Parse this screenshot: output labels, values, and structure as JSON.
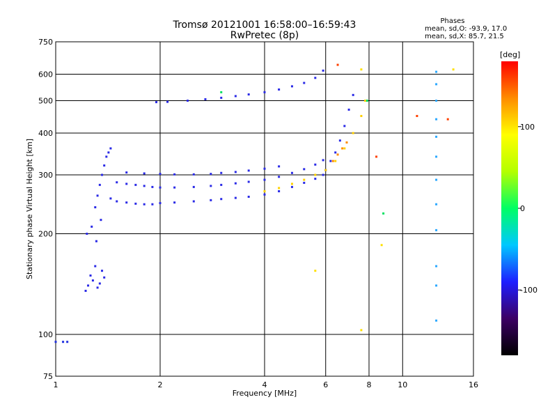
{
  "chart_data": {
    "type": "scatter",
    "title": "Tromsø 20121001 16:58:00–16:59:43",
    "subtitle": "RwPretec (8p)",
    "xlabel": "Frequency [MHz]",
    "ylabel": "Stationary phase Virtual Height [km]",
    "x_scale": "log",
    "y_scale": "log",
    "xlim": [
      1,
      16
    ],
    "ylim": [
      75,
      750
    ],
    "x_ticks": [
      1,
      2,
      4,
      6,
      8,
      10,
      16
    ],
    "x_tick_labels": [
      "1",
      "2",
      "4",
      "6",
      "8",
      "10",
      "16"
    ],
    "y_ticks": [
      75,
      100,
      200,
      300,
      400,
      500,
      600,
      750
    ],
    "y_tick_labels": [
      "75",
      "100",
      "200",
      "300",
      "400",
      "500",
      "600",
      "750"
    ],
    "grid": true,
    "grid_x": [
      2,
      4,
      6,
      8,
      10
    ],
    "grid_y": [
      100,
      200,
      300,
      400,
      500,
      600
    ],
    "phase_info": {
      "heading": "Phases",
      "line_o": "mean, sd,O: -93.9, 17.0",
      "line_x": "mean, sd,X: 85.7, 21.5"
    },
    "colorbar": {
      "unit": "[deg]",
      "range": [
        -180,
        180
      ],
      "ticks": [
        100,
        0,
        -100
      ],
      "tick_labels": [
        "100",
        "0",
        "-100"
      ],
      "colors": [
        "#000000",
        "#3c0064",
        "#1e1eff",
        "#00c8ff",
        "#00ff64",
        "#b4ff00",
        "#ffff00",
        "#ff8c00",
        "#ff0000"
      ]
    },
    "series": [
      {
        "color": "#2030e0",
        "x": [
          1.0,
          1.05,
          1.08
        ],
        "y": [
          95,
          95,
          95
        ]
      },
      {
        "color": "#2a2ae6",
        "x": [
          1.22,
          1.24,
          1.26,
          1.28,
          1.3,
          1.32,
          1.34,
          1.36,
          1.38,
          1.23,
          1.27,
          1.31,
          1.35
        ],
        "y": [
          135,
          140,
          150,
          145,
          160,
          138,
          142,
          155,
          148,
          200,
          210,
          190,
          220
        ]
      },
      {
        "color": "#2a2ae6",
        "x": [
          1.3,
          1.32,
          1.34,
          1.36,
          1.38,
          1.4,
          1.42,
          1.44
        ],
        "y": [
          240,
          260,
          280,
          300,
          320,
          340,
          350,
          360
        ]
      },
      {
        "color": "#2a2ae6",
        "x": [
          1.44,
          1.5,
          1.6,
          1.7,
          1.8,
          1.9,
          2.0,
          2.2,
          2.5,
          2.8,
          3.0,
          3.3,
          3.6,
          4.0,
          4.4,
          4.8,
          5.2,
          5.6,
          5.9
        ],
        "y": [
          255,
          250,
          248,
          246,
          245,
          245,
          247,
          248,
          250,
          252,
          254,
          256,
          258,
          262,
          268,
          276,
          284,
          292,
          300
        ]
      },
      {
        "color": "#2a2ae6",
        "x": [
          1.5,
          1.6,
          1.7,
          1.8,
          1.9,
          2.0,
          2.2,
          2.5,
          2.8,
          3.0,
          3.3,
          3.6,
          4.0,
          4.4,
          4.8,
          5.2,
          5.6,
          5.9
        ],
        "y": [
          285,
          282,
          280,
          278,
          276,
          275,
          275,
          276,
          278,
          280,
          283,
          286,
          290,
          296,
          304,
          312,
          322,
          332
        ]
      },
      {
        "color": "#2a2ae6",
        "x": [
          1.6,
          1.8,
          2.0,
          2.2,
          2.5,
          2.8,
          3.0,
          3.3,
          3.6,
          4.0,
          4.4
        ],
        "y": [
          305,
          303,
          302,
          301,
          301,
          302,
          304,
          306,
          309,
          313,
          318
        ]
      },
      {
        "color": "#2a2ae6",
        "x": [
          1.95,
          2.1,
          2.4,
          2.7,
          3.0,
          3.3,
          3.6,
          4.0,
          4.4,
          4.8,
          5.2,
          5.6,
          5.9
        ],
        "y": [
          495,
          496,
          500,
          505,
          510,
          516,
          522,
          530,
          540,
          552,
          565,
          585,
          615
        ]
      },
      {
        "color": "#2a2ae6",
        "x": [
          6.0,
          6.2,
          6.4,
          6.6,
          6.8,
          7.0,
          7.2
        ],
        "y": [
          310,
          330,
          350,
          380,
          420,
          470,
          520
        ]
      },
      {
        "color": "#ffd000",
        "x": [
          4.0,
          4.4,
          4.8,
          5.2,
          5.6,
          6.0,
          6.4,
          6.8,
          7.2,
          7.6,
          7.8
        ],
        "y": [
          268,
          274,
          282,
          290,
          300,
          310,
          330,
          360,
          400,
          450,
          500
        ]
      },
      {
        "color": "#ff8c00",
        "x": [
          6.3,
          6.5,
          6.7,
          6.9
        ],
        "y": [
          330,
          345,
          360,
          375
        ]
      },
      {
        "color": "#2aa8ff",
        "x": [
          12.5,
          12.5,
          12.5,
          12.5,
          12.5,
          12.5,
          12.5,
          12.5,
          12.5,
          12.5,
          12.5,
          12.5
        ],
        "y": [
          610,
          560,
          500,
          440,
          390,
          340,
          290,
          245,
          205,
          160,
          140,
          110
        ]
      },
      {
        "color": "#ff4000",
        "x": [
          6.5,
          8.4,
          11.0,
          13.5
        ],
        "y": [
          640,
          340,
          450,
          440
        ]
      },
      {
        "color": "#00e060",
        "x": [
          3.0,
          7.9,
          8.8
        ],
        "y": [
          530,
          500,
          230
        ]
      },
      {
        "color": "#ffe000",
        "x": [
          7.6,
          8.7,
          14.0,
          5.6,
          7.6
        ],
        "y": [
          620,
          185,
          620,
          155,
          103
        ]
      }
    ]
  }
}
